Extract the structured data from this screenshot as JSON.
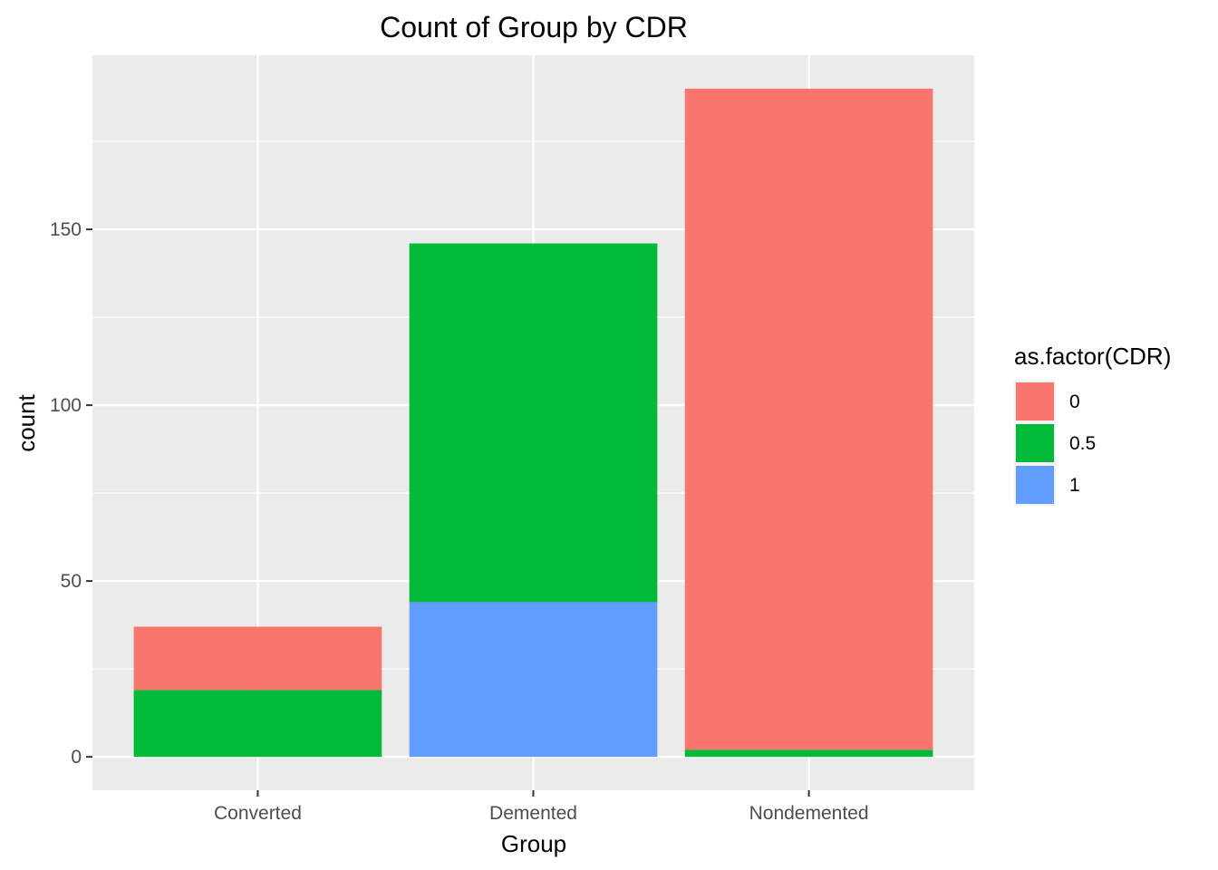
{
  "chart_data": {
    "type": "bar",
    "stacked": true,
    "title": "Count of Group by CDR",
    "xlabel": "Group",
    "ylabel": "count",
    "categories": [
      "Converted",
      "Demented",
      "Nondemented"
    ],
    "series": [
      {
        "name": "0",
        "color": "#F8766D",
        "values": [
          18,
          0,
          188
        ]
      },
      {
        "name": "0.5",
        "color": "#00BA38",
        "values": [
          19,
          102,
          2
        ]
      },
      {
        "name": "1",
        "color": "#619CFF",
        "values": [
          0,
          44,
          0
        ]
      }
    ],
    "yticks": [
      0,
      50,
      100,
      150
    ],
    "ylim": [
      -9.5,
      199.5
    ],
    "grid": true,
    "legend": {
      "title": "as.factor(CDR)",
      "position": "right"
    },
    "panel_background": "#EBEBEB",
    "grid_color": "#FFFFFF"
  }
}
